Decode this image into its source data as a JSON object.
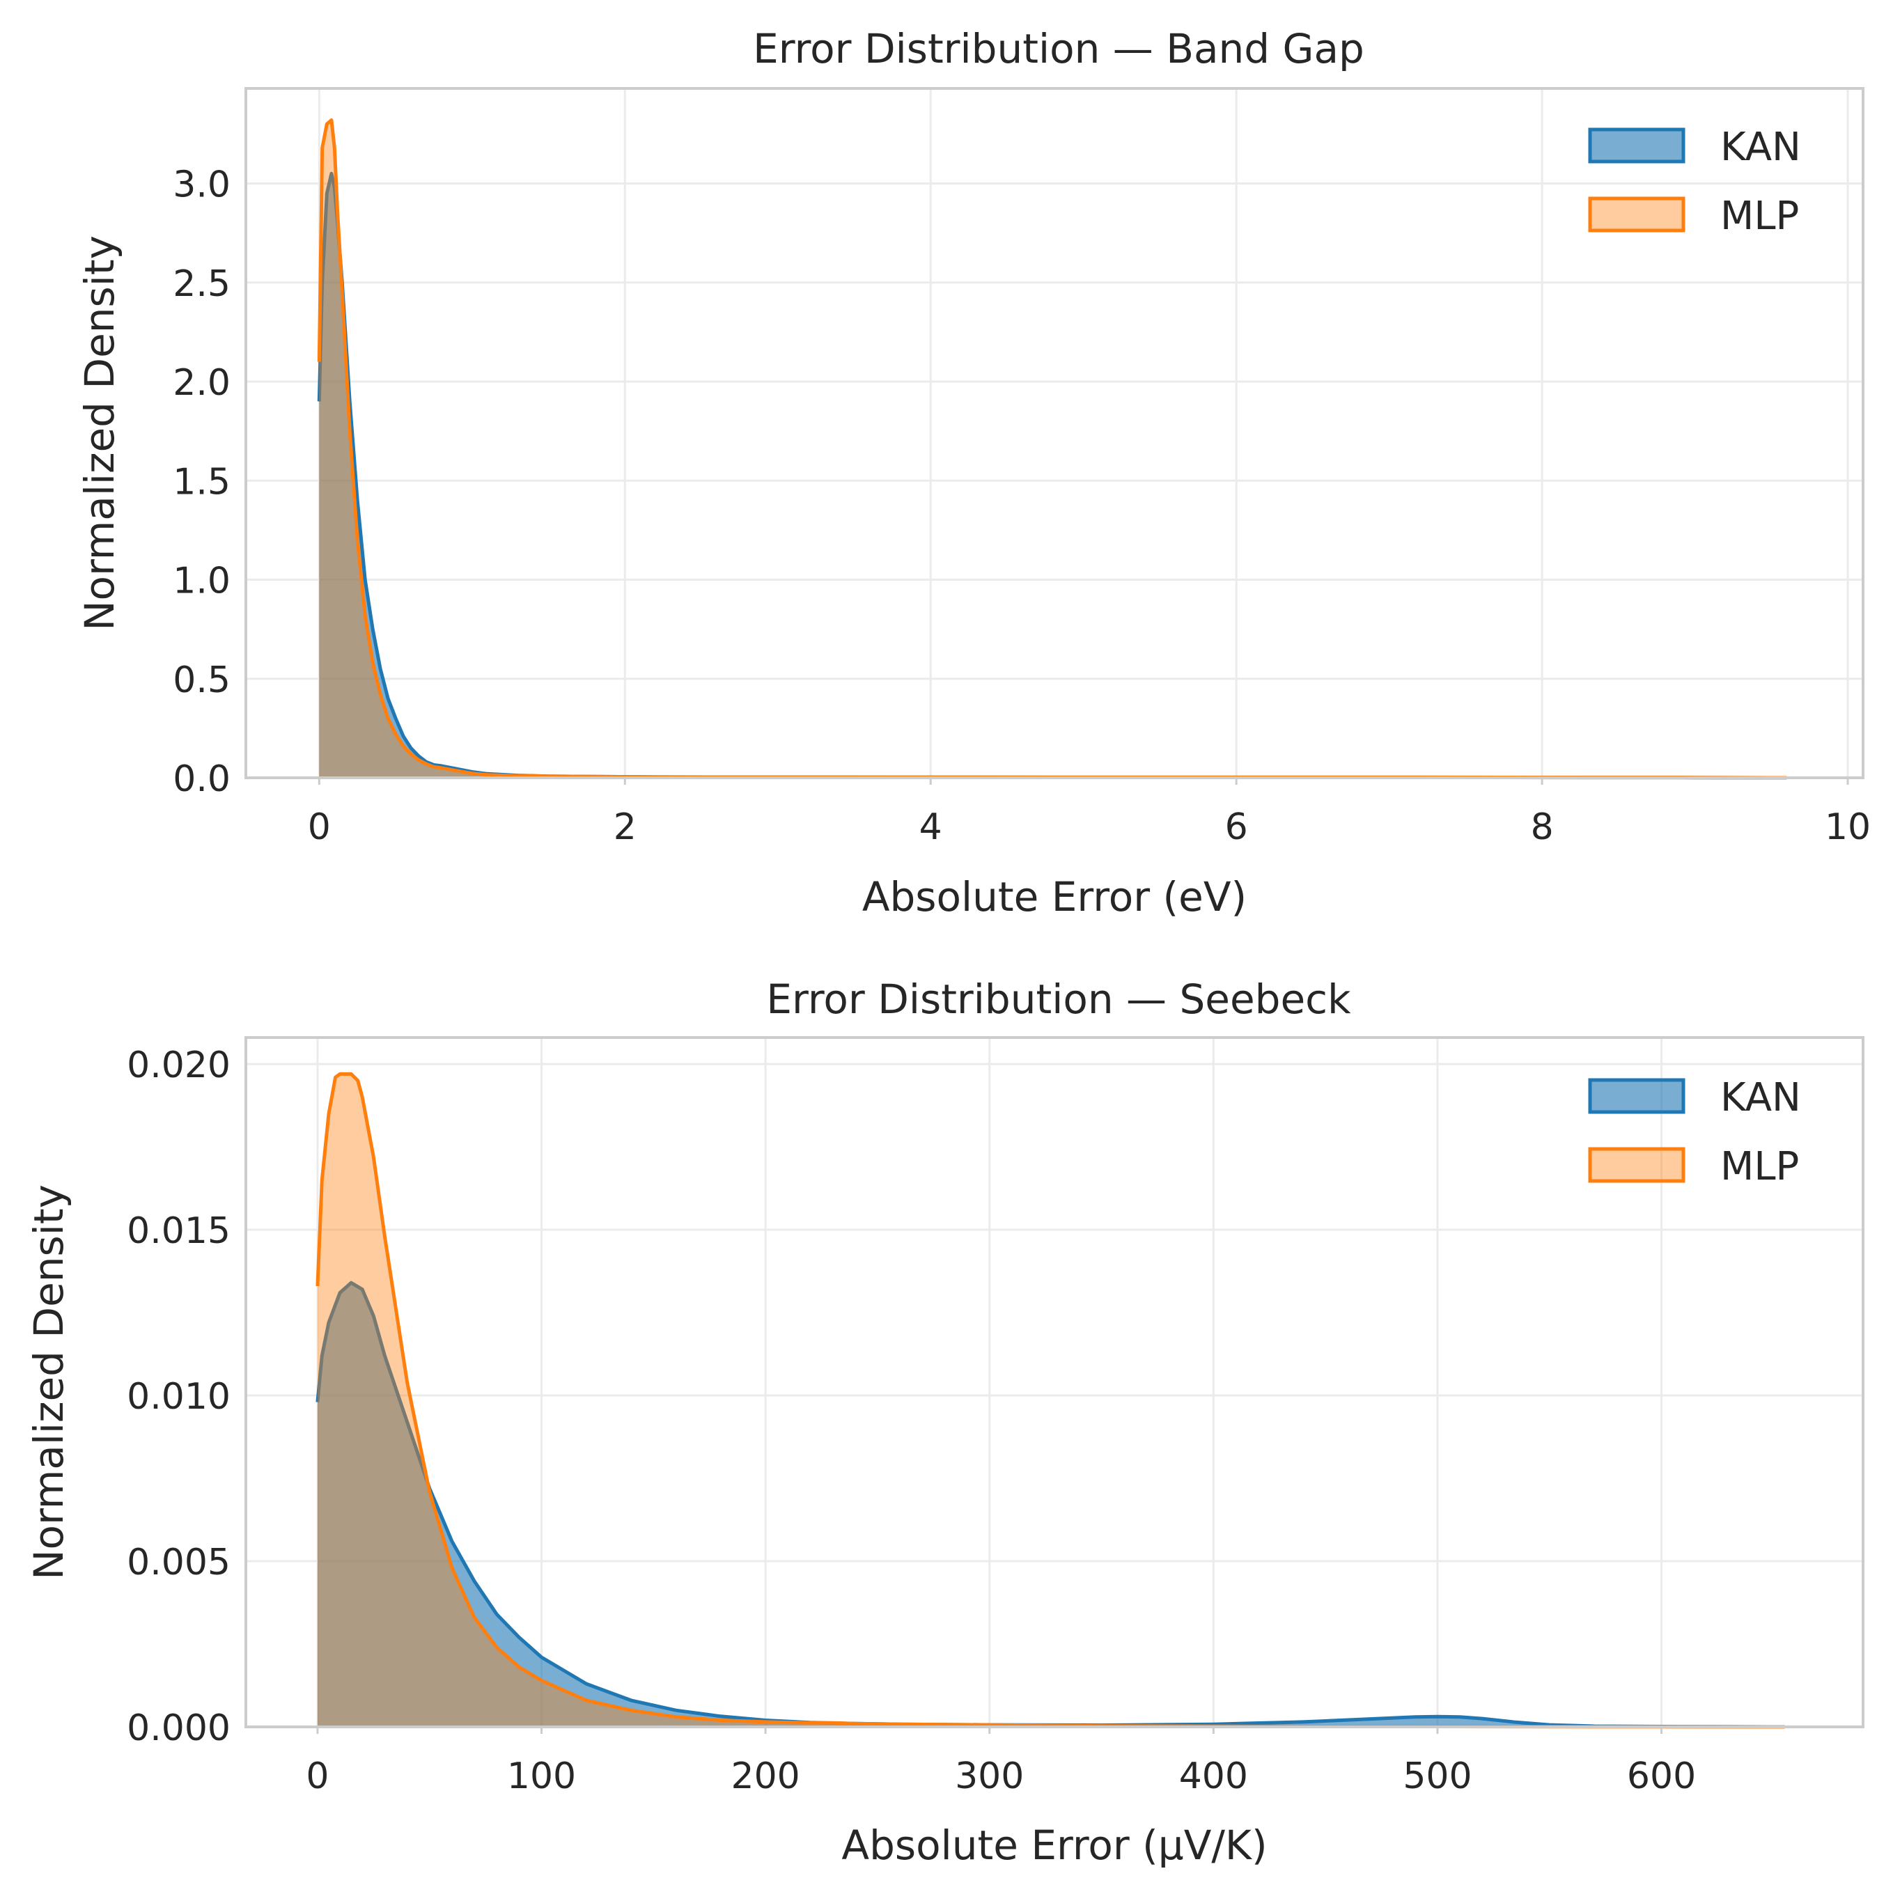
{
  "chart_data": [
    {
      "type": "area",
      "title": "Error Distribution — Band Gap",
      "xlabel": "Absolute Error (eV)",
      "ylabel": "Normalized Density",
      "xlim": [
        -0.48,
        10.1
      ],
      "ylim": [
        0,
        3.48
      ],
      "xticks": [
        0,
        2,
        4,
        6,
        8,
        10
      ],
      "xtick_labels": [
        "0",
        "2",
        "4",
        "6",
        "8",
        "10"
      ],
      "yticks": [
        0,
        0.5,
        1.0,
        1.5,
        2.0,
        2.5,
        3.0
      ],
      "ytick_labels": [
        "0.0",
        "0.5",
        "1.0",
        "1.5",
        "2.0",
        "2.5",
        "3.0"
      ],
      "grid": true,
      "legend": "top-right",
      "series": [
        {
          "name": "KAN",
          "color": "#1f77b4",
          "x": [
            0,
            0.02,
            0.05,
            0.08,
            0.1,
            0.12,
            0.15,
            0.2,
            0.25,
            0.3,
            0.35,
            0.4,
            0.45,
            0.5,
            0.55,
            0.6,
            0.65,
            0.7,
            0.75,
            0.8,
            0.9,
            1.0,
            1.1,
            1.3,
            1.5,
            1.8,
            2.2,
            3.0,
            5.0,
            7.0,
            9.0,
            9.5
          ],
          "y": [
            1.9,
            2.5,
            2.95,
            3.05,
            2.98,
            2.8,
            2.5,
            1.9,
            1.4,
            1.0,
            0.75,
            0.55,
            0.4,
            0.3,
            0.21,
            0.15,
            0.11,
            0.08,
            0.065,
            0.06,
            0.045,
            0.03,
            0.02,
            0.012,
            0.008,
            0.006,
            0.004,
            0.003,
            0.002,
            0.002,
            0.001,
            0
          ]
        },
        {
          "name": "MLP",
          "color": "#ff7f0e",
          "x": [
            0,
            0.02,
            0.05,
            0.08,
            0.1,
            0.12,
            0.15,
            0.2,
            0.25,
            0.3,
            0.35,
            0.4,
            0.45,
            0.5,
            0.55,
            0.6,
            0.65,
            0.7,
            0.75,
            0.8,
            0.9,
            1.0,
            1.1,
            1.3,
            1.5,
            1.8,
            2.2,
            3.0,
            5.0,
            7.0,
            9.0,
            9.6
          ],
          "y": [
            2.1,
            3.18,
            3.3,
            3.32,
            3.18,
            2.85,
            2.45,
            1.75,
            1.2,
            0.82,
            0.58,
            0.42,
            0.3,
            0.22,
            0.16,
            0.12,
            0.09,
            0.07,
            0.055,
            0.05,
            0.035,
            0.022,
            0.015,
            0.01,
            0.008,
            0.006,
            0.004,
            0.003,
            0.002,
            0.002,
            0.001,
            0
          ]
        }
      ]
    },
    {
      "type": "area",
      "title": "Error Distribution — Seebeck",
      "xlabel": "Absolute Error (μV/K)",
      "ylabel": "Normalized Density",
      "xlim": [
        -32,
        690
      ],
      "ylim": [
        0,
        0.0208
      ],
      "xticks": [
        0,
        100,
        200,
        300,
        400,
        500,
        600
      ],
      "xtick_labels": [
        "0",
        "100",
        "200",
        "300",
        "400",
        "500",
        "600"
      ],
      "yticks": [
        0,
        0.005,
        0.01,
        0.015,
        0.02
      ],
      "ytick_labels": [
        "0.000",
        "0.005",
        "0.010",
        "0.015",
        "0.020"
      ],
      "grid": true,
      "legend": "top-right",
      "series": [
        {
          "name": "KAN",
          "color": "#1f77b4",
          "x": [
            0,
            2,
            5,
            10,
            15,
            20,
            25,
            30,
            40,
            50,
            60,
            70,
            80,
            90,
            100,
            120,
            140,
            160,
            180,
            200,
            220,
            240,
            260,
            300,
            350,
            400,
            440,
            470,
            490,
            500,
            510,
            520,
            535,
            550,
            570,
            600,
            630,
            655
          ],
          "y": [
            0.0098,
            0.0112,
            0.0122,
            0.0131,
            0.0134,
            0.0132,
            0.0124,
            0.0112,
            0.0092,
            0.0072,
            0.0056,
            0.0044,
            0.0034,
            0.0027,
            0.0021,
            0.0013,
            0.0008,
            0.0005,
            0.00032,
            0.0002,
            0.00013,
            0.0001,
            8e-05,
            6e-05,
            5e-05,
            8e-05,
            0.00015,
            0.00024,
            0.0003,
            0.00031,
            0.0003,
            0.00025,
            0.00014,
            6e-05,
            2e-05,
            1e-05,
            5e-06,
            0
          ]
        },
        {
          "name": "MLP",
          "color": "#ff7f0e",
          "x": [
            0,
            2,
            5,
            8,
            10,
            15,
            18,
            20,
            25,
            30,
            40,
            50,
            60,
            70,
            80,
            90,
            100,
            120,
            140,
            160,
            180,
            200,
            220,
            230,
            240,
            260,
            300,
            350,
            400,
            450,
            500,
            550,
            600,
            655
          ],
          "y": [
            0.0133,
            0.0165,
            0.0185,
            0.0196,
            0.0197,
            0.0197,
            0.0195,
            0.019,
            0.0172,
            0.0148,
            0.0104,
            0.0071,
            0.0048,
            0.0033,
            0.0024,
            0.0018,
            0.0014,
            0.0008,
            0.0005,
            0.0003,
            0.0002,
            0.00015,
            0.00012,
            0.00012,
            0.0001,
            8e-05,
            6e-05,
            3e-05,
            2e-05,
            1e-05,
            1e-05,
            5e-06,
            2e-06,
            0
          ]
        }
      ]
    }
  ]
}
